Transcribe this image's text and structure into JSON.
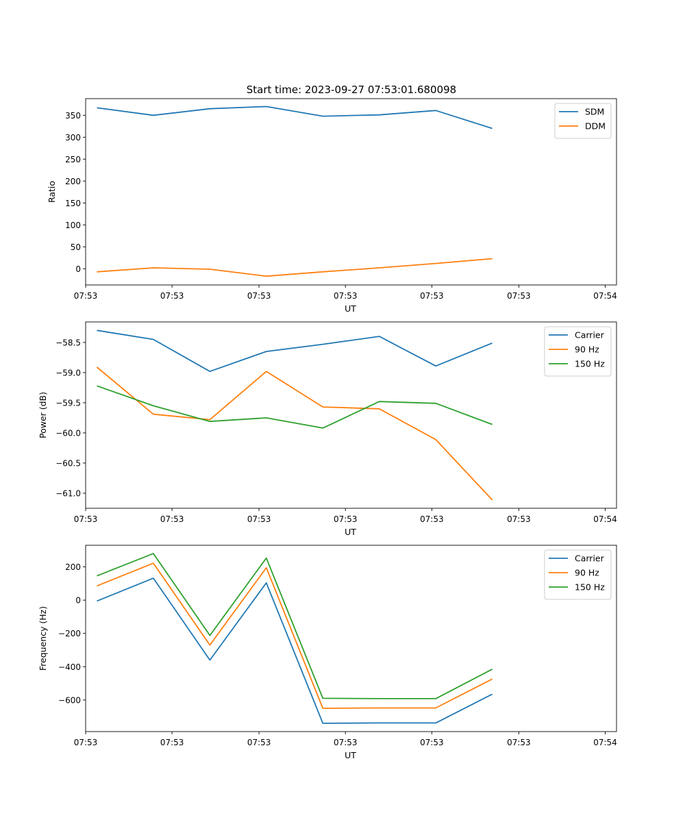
{
  "figure_title": "Start time: 2023-09-27 07:53:01.680098",
  "colors": {
    "blue": "#1f77b4",
    "orange": "#ff7f0e",
    "green": "#2ca02c"
  },
  "chart_data": [
    {
      "type": "line",
      "ylabel": "Ratio",
      "xlabel": "UT",
      "x": [
        1,
        2,
        3,
        4,
        5,
        6,
        7,
        8
      ],
      "xlim": [
        0.8,
        10.2
      ],
      "x_ticks": [
        0.8,
        2.33,
        3.87,
        5.4,
        6.93,
        8.47,
        10.0
      ],
      "x_tick_labels": [
        "07:53",
        "07:53",
        "07:53",
        "07:53",
        "07:53",
        "07:53",
        "07:54"
      ],
      "ylim": [
        -37,
        388
      ],
      "y_ticks": [
        0,
        50,
        100,
        150,
        200,
        250,
        300,
        350
      ],
      "y_tick_labels": [
        "0",
        "50",
        "100",
        "150",
        "200",
        "250",
        "300",
        "350"
      ],
      "legend_position": "top-right",
      "series": [
        {
          "name": "SDM",
          "color": "#1f77b4",
          "values": [
            367,
            350,
            365,
            370,
            348,
            351,
            361,
            320
          ]
        },
        {
          "name": "DDM",
          "color": "#ff7f0e",
          "values": [
            -7,
            2,
            -1,
            -17,
            -7,
            2,
            12,
            23
          ]
        }
      ]
    },
    {
      "type": "line",
      "ylabel": "Power (dB)",
      "xlabel": "UT",
      "x": [
        1,
        2,
        3,
        4,
        5,
        6,
        7,
        8
      ],
      "xlim": [
        0.8,
        10.2
      ],
      "x_ticks": [
        0.8,
        2.33,
        3.87,
        5.4,
        6.93,
        8.47,
        10.0
      ],
      "x_tick_labels": [
        "07:53",
        "07:53",
        "07:53",
        "07:53",
        "07:53",
        "07:53",
        "07:54"
      ],
      "ylim": [
        -61.25,
        -58.16
      ],
      "y_ticks": [
        -58.5,
        -59.0,
        -59.5,
        -60.0,
        -60.5,
        -61.0
      ],
      "y_tick_labels": [
        "−58.5",
        "−59.0",
        "−59.5",
        "−60.0",
        "−60.5",
        "−61.0"
      ],
      "legend_position": "top-right",
      "series": [
        {
          "name": "Carrier",
          "color": "#1f77b4",
          "values": [
            -58.3,
            -58.45,
            -58.98,
            -58.65,
            -58.53,
            -58.4,
            -58.89,
            -58.51
          ]
        },
        {
          "name": "90 Hz",
          "color": "#ff7f0e",
          "values": [
            -58.91,
            -59.69,
            -59.78,
            -58.98,
            -59.57,
            -59.6,
            -60.11,
            -61.11
          ]
        },
        {
          "name": "150 Hz",
          "color": "#2ca02c",
          "values": [
            -59.22,
            -59.55,
            -59.81,
            -59.75,
            -59.92,
            -59.48,
            -59.51,
            -59.86
          ]
        }
      ]
    },
    {
      "type": "line",
      "ylabel": "Frequency (Hz)",
      "xlabel": "UT",
      "x": [
        1,
        2,
        3,
        4,
        5,
        6,
        7,
        8
      ],
      "xlim": [
        0.8,
        10.2
      ],
      "x_ticks": [
        0.8,
        2.33,
        3.87,
        5.4,
        6.93,
        8.47,
        10.0
      ],
      "x_tick_labels": [
        "07:53",
        "07:53",
        "07:53",
        "07:53",
        "07:53",
        "07:53",
        "07:54"
      ],
      "ylim": [
        -790,
        330
      ],
      "y_ticks": [
        200,
        0,
        -200,
        -400,
        -600
      ],
      "y_tick_labels": [
        "200",
        "0",
        "−200",
        "−400",
        "−600"
      ],
      "legend_position": "top-right",
      "series": [
        {
          "name": "Carrier",
          "color": "#1f77b4",
          "values": [
            -5,
            132,
            -360,
            104,
            -740,
            -738,
            -738,
            -565
          ]
        },
        {
          "name": "90 Hz",
          "color": "#ff7f0e",
          "values": [
            86,
            222,
            -270,
            195,
            -650,
            -648,
            -648,
            -474
          ]
        },
        {
          "name": "150 Hz",
          "color": "#2ca02c",
          "values": [
            146,
            280,
            -212,
            253,
            -590,
            -592,
            -592,
            -415
          ]
        }
      ]
    }
  ]
}
